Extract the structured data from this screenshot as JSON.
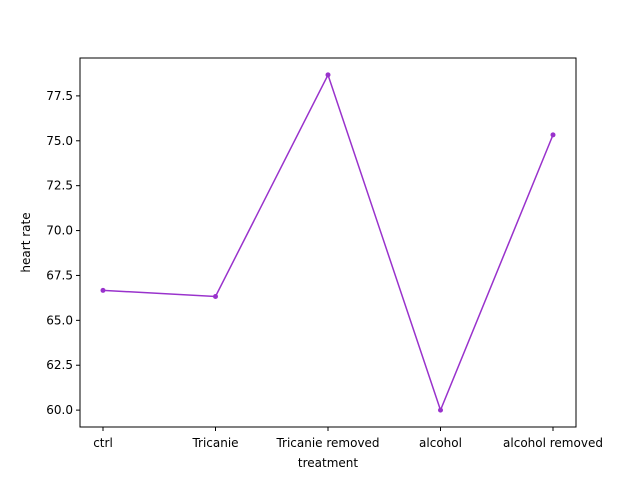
{
  "chart_data": {
    "type": "line",
    "categories": [
      "ctrl",
      "Tricanie",
      "Tricanie removed",
      "alcohol",
      "alcohol removed"
    ],
    "series": [
      {
        "values": [
          66.67,
          66.33,
          78.67,
          60.0,
          75.33
        ],
        "color": "#9932cc"
      }
    ],
    "xlabel": "treatment",
    "ylabel": "heart rate",
    "ylim": [
      59.06,
      79.61
    ],
    "yticks": [
      60.0,
      62.5,
      65.0,
      67.5,
      70.0,
      72.5,
      75.0,
      77.5
    ],
    "ytick_labels": [
      "60.0",
      "62.5",
      "65.0",
      "67.5",
      "70.0",
      "72.5",
      "75.0",
      "77.5"
    ],
    "grid": false,
    "legend": "none",
    "marker": "circle"
  }
}
